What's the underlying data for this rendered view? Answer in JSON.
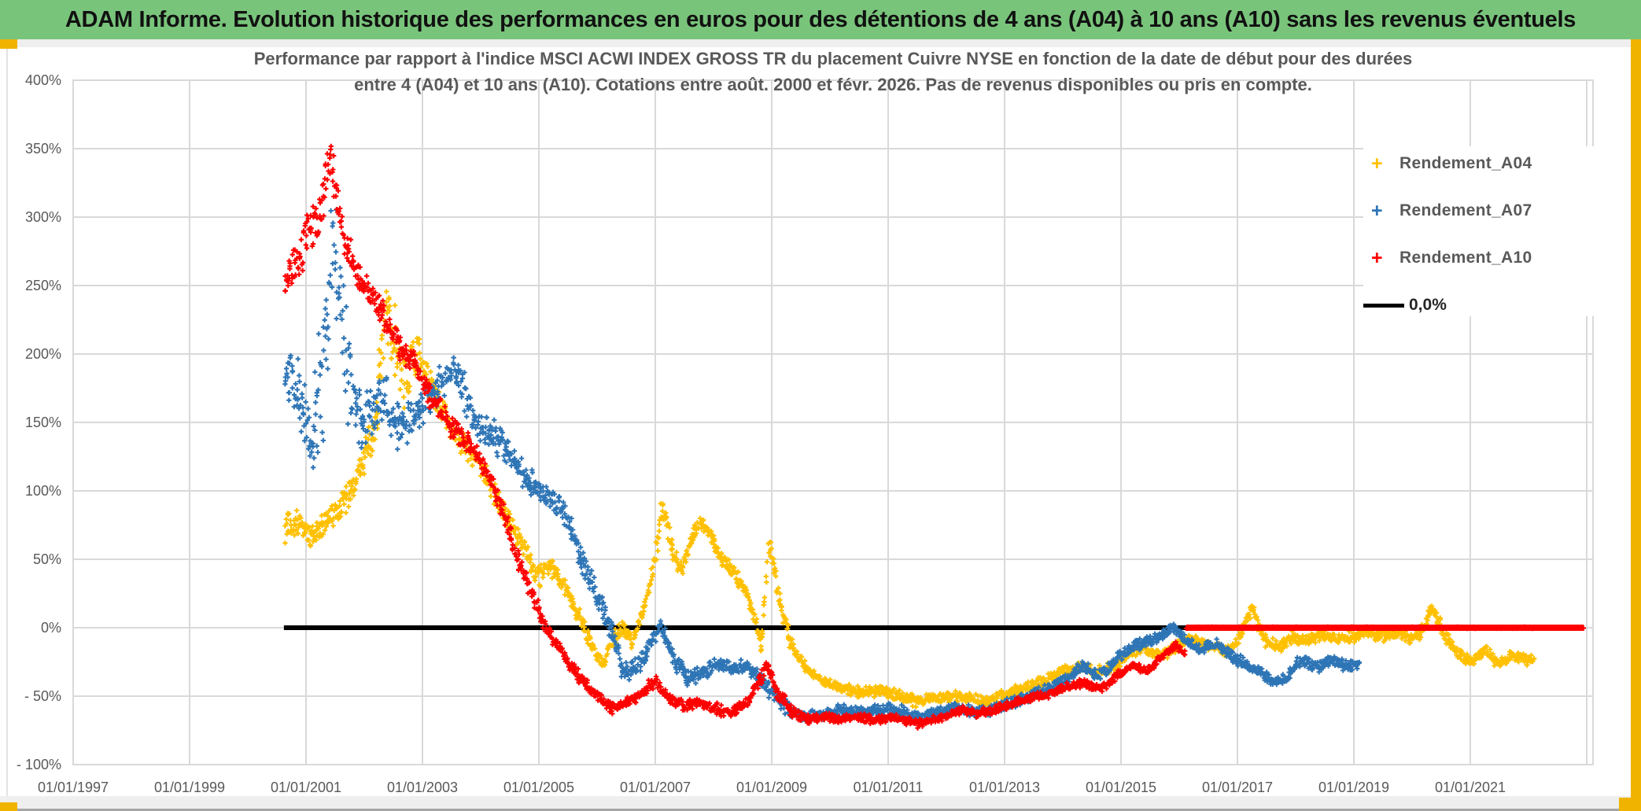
{
  "window": {
    "title": "ADAM Informe. Evolution historique des performances en euros pour des détentions de 4 ans (A04) à 10 ans (A10) sans les revenus éventuels"
  },
  "chart": {
    "title_line1": "Performance par rapport à l'indice MSCI ACWI INDEX GROSS TR  du placement Cuivre NYSE en fonction de la date de début pour des durées",
    "title_line2": "entre 4 (A04) et 10 ans (A10). Cotations entre août. 2000 et févr. 2026. Pas de revenus disponibles ou pris en compte."
  },
  "colors": {
    "titlebar_green": "#79C47B",
    "border_gold": "#F0B400",
    "axis_text": "#595959",
    "gridline": "#D9D9D9"
  },
  "chart_data": {
    "type": "scatter",
    "marker": "+",
    "x_axis": {
      "tick_labels": [
        "01/01/1997",
        "01/01/1999",
        "01/01/2001",
        "01/01/2003",
        "01/01/2005",
        "01/01/2007",
        "01/01/2009",
        "01/01/2011",
        "01/01/2013",
        "01/01/2015",
        "01/01/2017",
        "01/01/2019",
        "01/01/2021"
      ],
      "tick_years": [
        1997,
        1999,
        2001,
        2003,
        2005,
        2007,
        2009,
        2011,
        2013,
        2015,
        2017,
        2019,
        2021
      ],
      "grid_start_year": 1997,
      "grid_end_year": 2023,
      "grid_step_years": 2
    },
    "y_axis": {
      "unit": "%",
      "min": -100,
      "max": 400,
      "step": 50,
      "tick_labels": [
        "400%",
        "350%",
        "300%",
        "250%",
        "200%",
        "150%",
        "100%",
        "50%",
        "0%",
        "- 50%",
        "- 100%"
      ],
      "tick_values": [
        400,
        350,
        300,
        250,
        200,
        150,
        100,
        50,
        0,
        -50,
        -100
      ]
    },
    "legend": [
      {
        "name": "Rendement_A04",
        "color": "#FFC000",
        "marker": "+"
      },
      {
        "name": "Rendement_A07",
        "color": "#2E75B6",
        "marker": "+"
      },
      {
        "name": "Rendement_A10",
        "color": "#FF0000",
        "marker": "+"
      }
    ],
    "zero_line": {
      "label": "0,0%",
      "color": "#000000",
      "value": 0,
      "from_year": 2000.62,
      "to_year": 2022.95
    },
    "series": [
      {
        "name": "Rendement_A04",
        "color": "#FFC000",
        "keypoints": [
          [
            2000.65,
            72,
            10
          ],
          [
            2000.9,
            76,
            10
          ],
          [
            2001.15,
            66,
            9
          ],
          [
            2001.4,
            80,
            8
          ],
          [
            2001.7,
            95,
            10
          ],
          [
            2002.0,
            122,
            10
          ],
          [
            2002.2,
            160,
            25
          ],
          [
            2002.35,
            240,
            40
          ],
          [
            2002.5,
            215,
            25
          ],
          [
            2002.7,
            180,
            20
          ],
          [
            2002.9,
            200,
            15
          ],
          [
            2003.1,
            182,
            12
          ],
          [
            2003.35,
            158,
            10
          ],
          [
            2003.6,
            140,
            10
          ],
          [
            2003.85,
            126,
            8
          ],
          [
            2004.1,
            110,
            8
          ],
          [
            2004.4,
            86,
            8
          ],
          [
            2004.7,
            60,
            8
          ],
          [
            2005.0,
            38,
            8
          ],
          [
            2005.2,
            46,
            7
          ],
          [
            2005.5,
            24,
            7
          ],
          [
            2005.75,
            4,
            7
          ],
          [
            2005.95,
            -18,
            6
          ],
          [
            2006.1,
            -26,
            6
          ],
          [
            2006.3,
            -6,
            6
          ],
          [
            2006.45,
            0,
            5
          ],
          [
            2006.6,
            -10,
            5
          ],
          [
            2006.8,
            14,
            6
          ],
          [
            2007.0,
            50,
            8
          ],
          [
            2007.12,
            90,
            8
          ],
          [
            2007.3,
            55,
            7
          ],
          [
            2007.45,
            42,
            6
          ],
          [
            2007.6,
            62,
            6
          ],
          [
            2007.75,
            78,
            6
          ],
          [
            2007.95,
            68,
            6
          ],
          [
            2008.15,
            48,
            6
          ],
          [
            2008.35,
            40,
            6
          ],
          [
            2008.55,
            25,
            6
          ],
          [
            2008.7,
            8,
            6
          ],
          [
            2008.82,
            -14,
            5
          ],
          [
            2008.95,
            65,
            8
          ],
          [
            2009.1,
            28,
            6
          ],
          [
            2009.3,
            -8,
            6
          ],
          [
            2009.55,
            -28,
            5
          ],
          [
            2009.85,
            -38,
            4
          ],
          [
            2010.15,
            -44,
            4
          ],
          [
            2010.5,
            -47,
            4
          ],
          [
            2010.9,
            -46,
            4
          ],
          [
            2011.2,
            -50,
            4
          ],
          [
            2011.5,
            -54,
            4
          ],
          [
            2011.8,
            -51,
            4
          ],
          [
            2012.1,
            -50,
            4
          ],
          [
            2012.4,
            -52,
            4
          ],
          [
            2012.7,
            -54,
            4
          ],
          [
            2013.0,
            -49,
            4
          ],
          [
            2013.35,
            -44,
            4
          ],
          [
            2013.7,
            -39,
            4
          ],
          [
            2014.0,
            -32,
            4
          ],
          [
            2014.3,
            -29,
            4
          ],
          [
            2014.6,
            -32,
            4
          ],
          [
            2014.9,
            -28,
            4
          ],
          [
            2015.15,
            -19,
            4
          ],
          [
            2015.4,
            -14,
            4
          ],
          [
            2015.65,
            -21,
            4
          ],
          [
            2015.9,
            -16,
            4
          ],
          [
            2016.15,
            -8,
            4
          ],
          [
            2016.4,
            -12,
            4
          ],
          [
            2016.65,
            -15,
            4
          ],
          [
            2016.9,
            -17,
            4
          ],
          [
            2017.1,
            2,
            5
          ],
          [
            2017.25,
            15,
            5
          ],
          [
            2017.45,
            -8,
            5
          ],
          [
            2017.7,
            -15,
            4
          ],
          [
            2017.95,
            -6,
            4
          ],
          [
            2018.2,
            -10,
            4
          ],
          [
            2018.45,
            -5,
            4
          ],
          [
            2018.7,
            -8,
            4
          ],
          [
            2018.95,
            -7,
            4
          ],
          [
            2019.2,
            -3,
            4
          ],
          [
            2019.45,
            -7,
            4
          ],
          [
            2019.7,
            -3,
            4
          ],
          [
            2019.95,
            -7,
            4
          ],
          [
            2020.15,
            -4,
            4
          ],
          [
            2020.35,
            16,
            5
          ],
          [
            2020.55,
            -4,
            4
          ],
          [
            2020.8,
            -20,
            4
          ],
          [
            2021.05,
            -25,
            4
          ],
          [
            2021.25,
            -16,
            4
          ],
          [
            2021.5,
            -27,
            4
          ],
          [
            2021.75,
            -19,
            4
          ],
          [
            2021.95,
            -24,
            4
          ],
          [
            2022.1,
            -22,
            3
          ]
        ]
      },
      {
        "name": "Rendement_A07",
        "color": "#2E75B6",
        "keypoints": [
          [
            2000.65,
            185,
            15
          ],
          [
            2000.9,
            170,
            25
          ],
          [
            2001.1,
            130,
            30
          ],
          [
            2001.3,
            200,
            60
          ],
          [
            2001.45,
            280,
            40
          ],
          [
            2001.6,
            230,
            50
          ],
          [
            2001.8,
            170,
            40
          ],
          [
            2002.0,
            150,
            25
          ],
          [
            2002.3,
            165,
            20
          ],
          [
            2002.6,
            145,
            15
          ],
          [
            2002.9,
            155,
            15
          ],
          [
            2003.2,
            172,
            12
          ],
          [
            2003.5,
            190,
            12
          ],
          [
            2003.7,
            175,
            15
          ],
          [
            2003.9,
            150,
            12
          ],
          [
            2004.2,
            140,
            12
          ],
          [
            2004.5,
            128,
            10
          ],
          [
            2004.8,
            108,
            10
          ],
          [
            2005.1,
            98,
            8
          ],
          [
            2005.4,
            88,
            8
          ],
          [
            2005.7,
            55,
            10
          ],
          [
            2006.0,
            22,
            8
          ],
          [
            2006.2,
            2,
            8
          ],
          [
            2006.45,
            -32,
            8
          ],
          [
            2006.7,
            -28,
            6
          ],
          [
            2006.95,
            -10,
            6
          ],
          [
            2007.1,
            2,
            5
          ],
          [
            2007.3,
            -22,
            6
          ],
          [
            2007.55,
            -36,
            6
          ],
          [
            2007.8,
            -34,
            5
          ],
          [
            2008.05,
            -26,
            5
          ],
          [
            2008.3,
            -30,
            5
          ],
          [
            2008.55,
            -28,
            5
          ],
          [
            2008.8,
            -36,
            6
          ],
          [
            2009.0,
            -48,
            6
          ],
          [
            2009.3,
            -60,
            5
          ],
          [
            2009.6,
            -66,
            4
          ],
          [
            2009.9,
            -63,
            4
          ],
          [
            2010.2,
            -60,
            4
          ],
          [
            2010.5,
            -62,
            4
          ],
          [
            2010.8,
            -60,
            4
          ],
          [
            2011.1,
            -59,
            4
          ],
          [
            2011.5,
            -65,
            4
          ],
          [
            2011.9,
            -62,
            4
          ],
          [
            2012.2,
            -58,
            4
          ],
          [
            2012.5,
            -62,
            4
          ],
          [
            2012.8,
            -60,
            4
          ],
          [
            2013.1,
            -55,
            4
          ],
          [
            2013.4,
            -50,
            4
          ],
          [
            2013.7,
            -46,
            4
          ],
          [
            2014.0,
            -38,
            4
          ],
          [
            2014.35,
            -28,
            4
          ],
          [
            2014.6,
            -36,
            4
          ],
          [
            2014.9,
            -24,
            4
          ],
          [
            2015.15,
            -14,
            4
          ],
          [
            2015.45,
            -10,
            4
          ],
          [
            2015.7,
            -6,
            4
          ],
          [
            2015.9,
            0,
            3
          ],
          [
            2016.1,
            -8,
            4
          ],
          [
            2016.35,
            -16,
            4
          ],
          [
            2016.6,
            -11,
            4
          ],
          [
            2016.85,
            -19,
            4
          ],
          [
            2017.1,
            -26,
            4
          ],
          [
            2017.35,
            -31,
            4
          ],
          [
            2017.6,
            -40,
            4
          ],
          [
            2017.85,
            -36,
            4
          ],
          [
            2018.1,
            -23,
            4
          ],
          [
            2018.35,
            -29,
            4
          ],
          [
            2018.6,
            -24,
            4
          ],
          [
            2018.85,
            -28,
            4
          ],
          [
            2019.1,
            -26,
            3
          ]
        ]
      },
      {
        "name": "Rendement_A10",
        "color": "#FF0000",
        "zero_padding": {
          "from_year": 2016.12,
          "to_year": 2022.95
        },
        "keypoints": [
          [
            2000.65,
            252,
            12
          ],
          [
            2000.85,
            268,
            15
          ],
          [
            2001.05,
            288,
            15
          ],
          [
            2001.25,
            302,
            15
          ],
          [
            2001.42,
            345,
            18
          ],
          [
            2001.55,
            308,
            15
          ],
          [
            2001.7,
            276,
            14
          ],
          [
            2001.9,
            256,
            12
          ],
          [
            2002.1,
            242,
            10
          ],
          [
            2002.35,
            226,
            10
          ],
          [
            2002.6,
            206,
            10
          ],
          [
            2002.85,
            194,
            10
          ],
          [
            2003.05,
            176,
            9
          ],
          [
            2003.3,
            158,
            8
          ],
          [
            2003.6,
            142,
            8
          ],
          [
            2003.9,
            130,
            7
          ],
          [
            2004.1,
            114,
            7
          ],
          [
            2004.35,
            88,
            8
          ],
          [
            2004.6,
            54,
            8
          ],
          [
            2004.85,
            28,
            7
          ],
          [
            2005.05,
            6,
            6
          ],
          [
            2005.25,
            -10,
            6
          ],
          [
            2005.5,
            -26,
            6
          ],
          [
            2005.75,
            -38,
            5
          ],
          [
            2006.0,
            -50,
            5
          ],
          [
            2006.25,
            -59,
            4
          ],
          [
            2006.5,
            -55,
            4
          ],
          [
            2006.75,
            -49,
            4
          ],
          [
            2007.0,
            -38,
            5
          ],
          [
            2007.25,
            -52,
            4
          ],
          [
            2007.5,
            -57,
            4
          ],
          [
            2007.75,
            -54,
            4
          ],
          [
            2008.0,
            -59,
            4
          ],
          [
            2008.3,
            -62,
            4
          ],
          [
            2008.6,
            -54,
            4
          ],
          [
            2008.8,
            -38,
            5
          ],
          [
            2008.92,
            -28,
            5
          ],
          [
            2009.1,
            -47,
            5
          ],
          [
            2009.35,
            -61,
            4
          ],
          [
            2009.6,
            -67,
            3
          ],
          [
            2009.9,
            -65,
            3
          ],
          [
            2010.2,
            -67,
            3
          ],
          [
            2010.5,
            -65,
            3
          ],
          [
            2010.8,
            -68,
            3
          ],
          [
            2011.1,
            -65,
            3
          ],
          [
            2011.5,
            -70,
            3
          ],
          [
            2011.9,
            -66,
            3
          ],
          [
            2012.2,
            -60,
            3
          ],
          [
            2012.5,
            -63,
            3
          ],
          [
            2012.8,
            -60,
            3
          ],
          [
            2013.1,
            -56,
            3
          ],
          [
            2013.4,
            -52,
            3
          ],
          [
            2013.7,
            -49,
            3
          ],
          [
            2014.0,
            -44,
            3
          ],
          [
            2014.35,
            -40,
            3
          ],
          [
            2014.65,
            -45,
            3
          ],
          [
            2014.95,
            -34,
            3
          ],
          [
            2015.2,
            -27,
            3
          ],
          [
            2015.45,
            -32,
            3
          ],
          [
            2015.7,
            -21,
            3
          ],
          [
            2015.95,
            -13,
            3
          ],
          [
            2016.1,
            -20,
            3
          ]
        ]
      }
    ]
  }
}
